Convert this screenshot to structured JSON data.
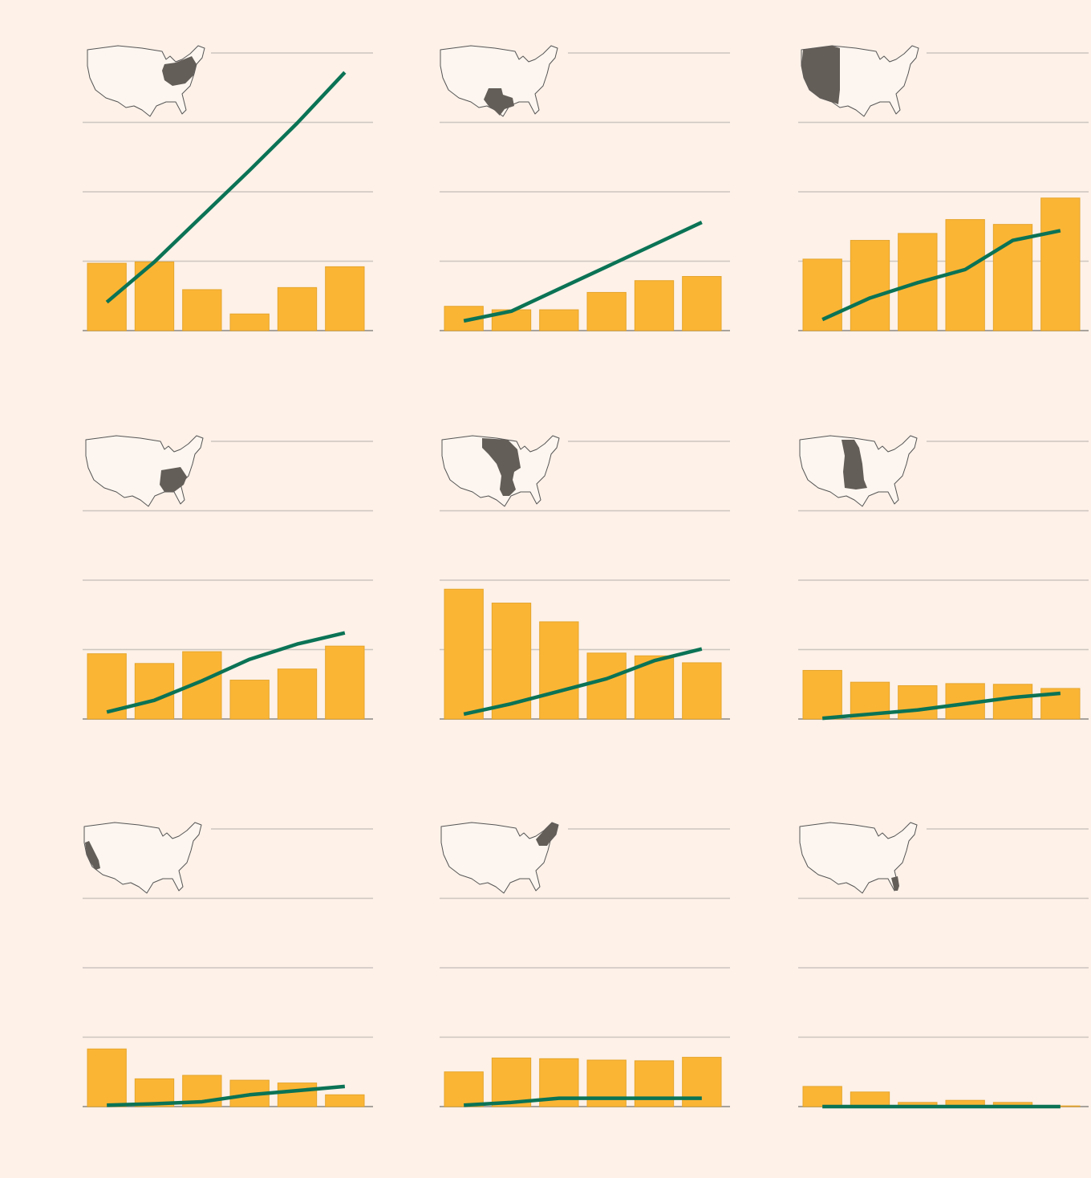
{
  "chart_data": [
    {
      "type": "combo",
      "ylim": [
        0,
        4
      ],
      "yticks": [
        0,
        1,
        2,
        3,
        4
      ],
      "grid": true,
      "series": [
        {
          "type": "bar",
          "color": "#fbb535",
          "values": [
            0.97,
            0.99,
            0.59,
            0.24,
            0.62,
            0.92
          ]
        },
        {
          "type": "line",
          "color": "#0b7355",
          "values": [
            0.41,
            0.99,
            1.65,
            2.31,
            2.99,
            3.72
          ]
        }
      ]
    },
    {
      "type": "combo",
      "ylim": [
        0,
        4
      ],
      "yticks": [
        0,
        1,
        2,
        3,
        4
      ],
      "grid": true,
      "series": [
        {
          "type": "bar",
          "color": "#fbb535",
          "values": [
            0.35,
            0.3,
            0.3,
            0.55,
            0.72,
            0.78
          ]
        },
        {
          "type": "line",
          "color": "#0b7355",
          "values": [
            0.14,
            0.28,
            0.6,
            0.92,
            1.24,
            1.56
          ]
        }
      ]
    },
    {
      "type": "combo",
      "ylim": [
        0,
        4
      ],
      "yticks": [
        0,
        1,
        2,
        3,
        4
      ],
      "grid": true,
      "series": [
        {
          "type": "bar",
          "color": "#fbb535",
          "values": [
            1.03,
            1.3,
            1.4,
            1.6,
            1.53,
            1.91
          ]
        },
        {
          "type": "line",
          "color": "#0b7355",
          "values": [
            0.16,
            0.47,
            0.69,
            0.88,
            1.3,
            1.44
          ]
        }
      ]
    },
    {
      "type": "combo",
      "ylim": [
        0,
        4
      ],
      "yticks": [
        0,
        1,
        2,
        3,
        4
      ],
      "grid": true,
      "series": [
        {
          "type": "bar",
          "color": "#fbb535",
          "values": [
            0.94,
            0.8,
            0.97,
            0.56,
            0.72,
            1.05
          ]
        },
        {
          "type": "line",
          "color": "#0b7355",
          "values": [
            0.1,
            0.27,
            0.55,
            0.86,
            1.08,
            1.24
          ]
        }
      ]
    },
    {
      "type": "combo",
      "ylim": [
        0,
        4
      ],
      "yticks": [
        0,
        1,
        2,
        3,
        4
      ],
      "grid": true,
      "series": [
        {
          "type": "bar",
          "color": "#fbb535",
          "values": [
            1.87,
            1.67,
            1.4,
            0.95,
            0.91,
            0.81
          ]
        },
        {
          "type": "line",
          "color": "#0b7355",
          "values": [
            0.07,
            0.22,
            0.4,
            0.58,
            0.84,
            1.01
          ]
        }
      ]
    },
    {
      "type": "combo",
      "ylim": [
        0,
        4
      ],
      "yticks": [
        0,
        1,
        2,
        3,
        4
      ],
      "grid": true,
      "series": [
        {
          "type": "bar",
          "color": "#fbb535",
          "values": [
            0.7,
            0.53,
            0.48,
            0.51,
            0.5,
            0.44
          ]
        },
        {
          "type": "line",
          "color": "#0b7355",
          "values": [
            0.01,
            0.07,
            0.13,
            0.22,
            0.31,
            0.37
          ]
        }
      ]
    },
    {
      "type": "combo",
      "ylim": [
        0,
        4
      ],
      "yticks": [
        0,
        1,
        2,
        3,
        4
      ],
      "grid": true,
      "series": [
        {
          "type": "bar",
          "color": "#fbb535",
          "values": [
            0.83,
            0.4,
            0.45,
            0.38,
            0.34,
            0.17
          ]
        },
        {
          "type": "line",
          "color": "#0b7355",
          "values": [
            0.02,
            0.04,
            0.07,
            0.17,
            0.23,
            0.29
          ]
        }
      ]
    },
    {
      "type": "combo",
      "ylim": [
        0,
        4
      ],
      "yticks": [
        0,
        1,
        2,
        3,
        4
      ],
      "grid": true,
      "series": [
        {
          "type": "bar",
          "color": "#fbb535",
          "values": [
            0.5,
            0.7,
            0.69,
            0.67,
            0.66,
            0.71
          ]
        },
        {
          "type": "line",
          "color": "#0b7355",
          "values": [
            0.02,
            0.06,
            0.12,
            0.12,
            0.12,
            0.12
          ]
        }
      ]
    },
    {
      "type": "combo",
      "ylim": [
        0,
        4
      ],
      "yticks": [
        0,
        1,
        2,
        3,
        4
      ],
      "grid": true,
      "series": [
        {
          "type": "bar",
          "color": "#fbb535",
          "values": [
            0.29,
            0.21,
            0.06,
            0.09,
            0.06,
            0.01
          ]
        },
        {
          "type": "line",
          "color": "#0b7355",
          "values": [
            0.0,
            0.0,
            0.0,
            0.0,
            0.0,
            0.0
          ]
        }
      ]
    }
  ]
}
